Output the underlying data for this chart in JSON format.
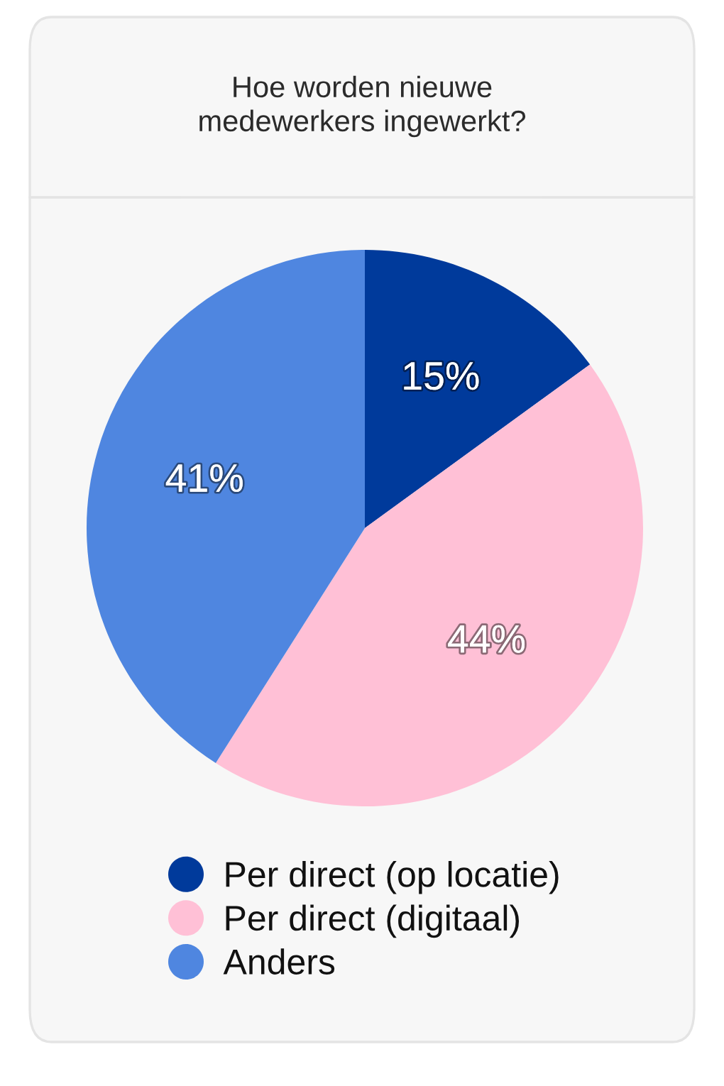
{
  "chart_data": {
    "type": "pie",
    "title": "Hoe worden nieuwe\nmedewerkers ingewerkt?",
    "categories": [
      "Per direct (op locatie)",
      "Per direct (digitaal)",
      "Anders"
    ],
    "values": [
      15,
      44,
      41
    ],
    "value_labels": [
      "15%",
      "44%",
      "41%"
    ],
    "colors": [
      "#003a9b",
      "#ffc0d6",
      "#4f86e0"
    ],
    "legend": "bottom"
  }
}
